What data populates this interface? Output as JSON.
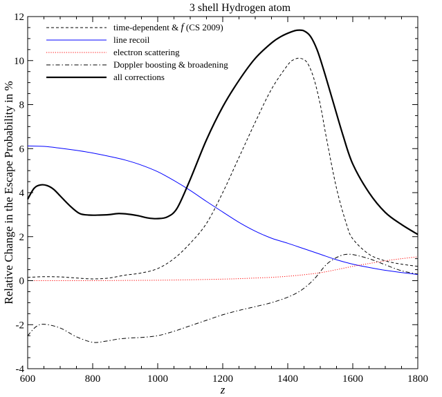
{
  "chart_data": {
    "type": "line",
    "title": "3 shell Hydrogen atom",
    "xlabel": "z",
    "ylabel": "Relative Change in the Escape Probability in %",
    "xlim": [
      600,
      1800
    ],
    "ylim": [
      -4,
      12
    ],
    "xticks": [
      600,
      800,
      1000,
      1200,
      1400,
      1600,
      1800
    ],
    "yticks": [
      -4,
      -2,
      0,
      2,
      4,
      6,
      8,
      10,
      12
    ],
    "grid": false,
    "legend_position": "top-left",
    "series": [
      {
        "name": "time-dependent & f (CS 2009)",
        "legend_parts": [
          "time-dependent & ",
          "f",
          " (CS 2009)"
        ],
        "color": "#000000",
        "style": "dashed",
        "x": [
          600,
          650,
          700,
          750,
          800,
          850,
          900,
          950,
          1000,
          1050,
          1100,
          1150,
          1200,
          1250,
          1300,
          1350,
          1400,
          1420,
          1440,
          1460,
          1480,
          1500,
          1520,
          1550,
          1580,
          1600,
          1650,
          1700,
          1750,
          1800
        ],
        "y": [
          0.15,
          0.18,
          0.17,
          0.12,
          0.08,
          0.12,
          0.25,
          0.35,
          0.55,
          1.0,
          1.7,
          2.6,
          4.0,
          5.6,
          7.2,
          8.7,
          9.8,
          10.05,
          10.1,
          9.9,
          9.2,
          8.0,
          6.4,
          4.2,
          2.6,
          1.9,
          1.2,
          0.9,
          0.75,
          0.65
        ]
      },
      {
        "name": "line recoil",
        "color": "#0000ff",
        "style": "solid",
        "x": [
          600,
          650,
          700,
          750,
          800,
          850,
          900,
          950,
          1000,
          1050,
          1100,
          1150,
          1200,
          1250,
          1300,
          1350,
          1400,
          1450,
          1500,
          1550,
          1600,
          1650,
          1700,
          1750,
          1800
        ],
        "y": [
          6.12,
          6.1,
          6.02,
          5.92,
          5.8,
          5.65,
          5.48,
          5.25,
          4.95,
          4.55,
          4.1,
          3.6,
          3.12,
          2.65,
          2.25,
          1.93,
          1.7,
          1.45,
          1.2,
          0.95,
          0.75,
          0.6,
          0.47,
          0.37,
          0.28
        ]
      },
      {
        "name": "electron scattering",
        "color": "#ff0000",
        "style": "dotted",
        "x": [
          600,
          700,
          800,
          900,
          1000,
          1100,
          1200,
          1250,
          1300,
          1350,
          1400,
          1450,
          1500,
          1550,
          1600,
          1650,
          1700,
          1750,
          1800
        ],
        "y": [
          0.0,
          0.0,
          0.0,
          0.01,
          0.02,
          0.04,
          0.07,
          0.09,
          0.12,
          0.15,
          0.2,
          0.27,
          0.36,
          0.5,
          0.65,
          0.78,
          0.9,
          1.0,
          1.08
        ]
      },
      {
        "name": "Doppler boosting & broadening",
        "color": "#000000",
        "style": "dashdot",
        "x": [
          600,
          625,
          650,
          700,
          750,
          800,
          840,
          880,
          920,
          950,
          1000,
          1050,
          1100,
          1150,
          1200,
          1250,
          1300,
          1350,
          1400,
          1440,
          1480,
          1520,
          1560,
          1590,
          1620,
          1660,
          1700,
          1750,
          1800
        ],
        "y": [
          -2.5,
          -2.1,
          -1.98,
          -2.15,
          -2.55,
          -2.8,
          -2.75,
          -2.65,
          -2.6,
          -2.58,
          -2.5,
          -2.3,
          -2.05,
          -1.8,
          -1.55,
          -1.35,
          -1.18,
          -1.0,
          -0.75,
          -0.45,
          0.05,
          0.75,
          1.12,
          1.2,
          1.12,
          0.95,
          0.72,
          0.45,
          0.3
        ]
      },
      {
        "name": "all corrections",
        "color": "#000000",
        "style": "thick",
        "x": [
          600,
          620,
          640,
          660,
          680,
          700,
          730,
          760,
          790,
          820,
          850,
          880,
          910,
          940,
          970,
          1000,
          1030,
          1060,
          1100,
          1150,
          1200,
          1250,
          1300,
          1350,
          1380,
          1410,
          1430,
          1450,
          1470,
          1490,
          1510,
          1540,
          1570,
          1600,
          1650,
          1700,
          1750,
          1800
        ],
        "y": [
          3.7,
          4.2,
          4.35,
          4.32,
          4.15,
          3.85,
          3.4,
          3.05,
          2.98,
          2.98,
          3.0,
          3.05,
          3.02,
          2.95,
          2.85,
          2.82,
          2.9,
          3.3,
          4.6,
          6.4,
          7.9,
          9.1,
          10.1,
          10.8,
          11.1,
          11.3,
          11.38,
          11.35,
          11.1,
          10.5,
          9.6,
          8.1,
          6.6,
          5.3,
          4.0,
          3.1,
          2.55,
          2.1
        ]
      }
    ]
  }
}
